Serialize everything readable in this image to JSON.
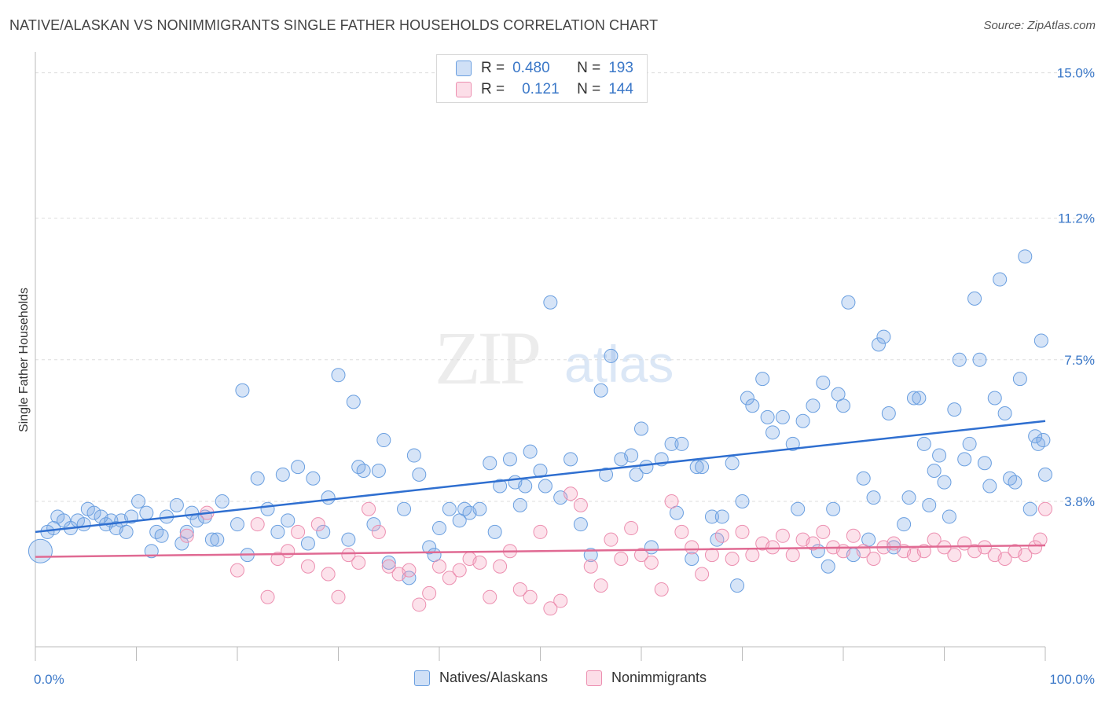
{
  "title": "NATIVE/ALASKAN VS NONIMMIGRANTS SINGLE FATHER HOUSEHOLDS CORRELATION CHART",
  "source": "Source: ZipAtlas.com",
  "watermark": {
    "zip": "ZIP",
    "atlas": "atlas"
  },
  "legend": {
    "r_label": "R =",
    "n_label": "N =",
    "rows": [
      {
        "r": "0.480",
        "n": "193"
      },
      {
        "r": "0.121",
        "n": "144"
      }
    ]
  },
  "chart_data": {
    "type": "scatter",
    "title": "NATIVE/ALASKAN VS NONIMMIGRANTS SINGLE FATHER HOUSEHOLDS CORRELATION CHART",
    "xlabel": "",
    "ylabel": "Single Father Households",
    "xlim": [
      0,
      100
    ],
    "ylim": [
      0,
      15
    ],
    "x_ticks": [
      "0.0%",
      "100.0%"
    ],
    "y_ticks": [
      {
        "value": 3.8,
        "label": "3.8%"
      },
      {
        "value": 7.5,
        "label": "7.5%"
      },
      {
        "value": 11.2,
        "label": "11.2%"
      },
      {
        "value": 15.0,
        "label": "15.0%"
      }
    ],
    "grid": true,
    "legend_position": "bottom-center",
    "colors": {
      "natives": "#6a9fe0",
      "natives_fill": "rgba(120,165,230,0.30)",
      "natives_line": "#2f6fd0",
      "nonimm": "#ec8fb0",
      "nonimm_fill": "rgba(245,160,190,0.30)",
      "nonimm_line": "#e06a93"
    },
    "series": [
      {
        "name": "Natives/Alaskans",
        "trend": [
          [
            0,
            3.0
          ],
          [
            100,
            5.9
          ]
        ],
        "points": [
          [
            0.5,
            2.5
          ],
          [
            1.2,
            3.0
          ],
          [
            1.8,
            3.1
          ],
          [
            2.2,
            3.4
          ],
          [
            2.8,
            3.3
          ],
          [
            3.5,
            3.1
          ],
          [
            4.2,
            3.3
          ],
          [
            4.8,
            3.2
          ],
          [
            5.2,
            3.6
          ],
          [
            5.8,
            3.5
          ],
          [
            6.5,
            3.4
          ],
          [
            7.0,
            3.2
          ],
          [
            7.5,
            3.3
          ],
          [
            8.0,
            3.1
          ],
          [
            8.5,
            3.3
          ],
          [
            9.0,
            3.0
          ],
          [
            9.5,
            3.4
          ],
          [
            10.2,
            3.8
          ],
          [
            11.0,
            3.5
          ],
          [
            11.5,
            2.5
          ],
          [
            12.0,
            3.0
          ],
          [
            12.5,
            2.9
          ],
          [
            13.0,
            3.4
          ],
          [
            14.0,
            3.7
          ],
          [
            14.5,
            2.7
          ],
          [
            15.0,
            3.0
          ],
          [
            15.5,
            3.5
          ],
          [
            16.0,
            3.3
          ],
          [
            16.8,
            3.4
          ],
          [
            17.5,
            2.8
          ],
          [
            18.0,
            2.8
          ],
          [
            18.5,
            3.8
          ],
          [
            20.0,
            3.2
          ],
          [
            20.5,
            6.7
          ],
          [
            21.0,
            2.4
          ],
          [
            22.0,
            4.4
          ],
          [
            23.0,
            3.6
          ],
          [
            24.0,
            3.0
          ],
          [
            24.5,
            4.5
          ],
          [
            25.0,
            3.3
          ],
          [
            26.0,
            4.7
          ],
          [
            27.0,
            2.7
          ],
          [
            27.5,
            4.4
          ],
          [
            28.5,
            3.0
          ],
          [
            29.0,
            3.9
          ],
          [
            30.0,
            7.1
          ],
          [
            31.0,
            2.8
          ],
          [
            31.5,
            6.4
          ],
          [
            32.0,
            4.7
          ],
          [
            32.5,
            4.6
          ],
          [
            33.5,
            3.2
          ],
          [
            34.0,
            4.6
          ],
          [
            34.5,
            5.4
          ],
          [
            35.0,
            2.2
          ],
          [
            36.5,
            3.6
          ],
          [
            37.0,
            1.8
          ],
          [
            37.5,
            5.0
          ],
          [
            38.0,
            4.5
          ],
          [
            39.0,
            2.6
          ],
          [
            39.5,
            2.4
          ],
          [
            40.0,
            3.1
          ],
          [
            41.0,
            3.6
          ],
          [
            42.0,
            3.3
          ],
          [
            42.5,
            3.6
          ],
          [
            43.0,
            3.5
          ],
          [
            44.0,
            3.6
          ],
          [
            45.0,
            4.8
          ],
          [
            45.5,
            3.0
          ],
          [
            46.0,
            4.2
          ],
          [
            47.0,
            4.9
          ],
          [
            47.5,
            4.3
          ],
          [
            48.0,
            3.7
          ],
          [
            48.5,
            4.2
          ],
          [
            49.0,
            5.1
          ],
          [
            50.0,
            4.6
          ],
          [
            50.5,
            4.2
          ],
          [
            51.0,
            9.0
          ],
          [
            52.0,
            3.9
          ],
          [
            53.0,
            4.9
          ],
          [
            54.0,
            3.2
          ],
          [
            55.0,
            2.4
          ],
          [
            56.0,
            6.7
          ],
          [
            56.5,
            4.5
          ],
          [
            57.0,
            7.6
          ],
          [
            58.0,
            4.9
          ],
          [
            59.0,
            5.0
          ],
          [
            59.5,
            4.5
          ],
          [
            60.0,
            5.7
          ],
          [
            60.5,
            4.7
          ],
          [
            61.0,
            2.6
          ],
          [
            62.0,
            4.9
          ],
          [
            63.0,
            5.3
          ],
          [
            63.5,
            3.5
          ],
          [
            64.0,
            5.3
          ],
          [
            65.0,
            2.3
          ],
          [
            65.5,
            4.7
          ],
          [
            66.0,
            4.7
          ],
          [
            67.0,
            3.4
          ],
          [
            67.5,
            2.8
          ],
          [
            68.0,
            3.4
          ],
          [
            69.0,
            4.8
          ],
          [
            69.5,
            1.6
          ],
          [
            70.0,
            3.8
          ],
          [
            70.5,
            6.5
          ],
          [
            71.0,
            6.3
          ],
          [
            72.0,
            7.0
          ],
          [
            72.5,
            6.0
          ],
          [
            73.0,
            5.6
          ],
          [
            74.0,
            6.0
          ],
          [
            75.0,
            5.3
          ],
          [
            75.5,
            3.6
          ],
          [
            76.0,
            5.9
          ],
          [
            77.0,
            6.3
          ],
          [
            77.5,
            2.5
          ],
          [
            78.0,
            6.9
          ],
          [
            78.5,
            2.1
          ],
          [
            79.0,
            3.6
          ],
          [
            79.5,
            6.6
          ],
          [
            80.0,
            6.3
          ],
          [
            80.5,
            9.0
          ],
          [
            81.0,
            2.4
          ],
          [
            82.0,
            4.4
          ],
          [
            82.5,
            2.8
          ],
          [
            83.0,
            3.9
          ],
          [
            83.5,
            7.9
          ],
          [
            84.0,
            8.1
          ],
          [
            84.5,
            6.1
          ],
          [
            85.0,
            2.6
          ],
          [
            86.0,
            3.2
          ],
          [
            86.5,
            3.9
          ],
          [
            87.0,
            6.5
          ],
          [
            87.5,
            6.5
          ],
          [
            88.0,
            5.3
          ],
          [
            88.5,
            3.7
          ],
          [
            89.0,
            4.6
          ],
          [
            89.5,
            5.0
          ],
          [
            90.0,
            4.3
          ],
          [
            90.5,
            3.4
          ],
          [
            91.0,
            6.2
          ],
          [
            91.5,
            7.5
          ],
          [
            92.0,
            4.9
          ],
          [
            92.5,
            5.3
          ],
          [
            93.0,
            9.1
          ],
          [
            93.5,
            7.5
          ],
          [
            94.0,
            4.8
          ],
          [
            94.5,
            4.2
          ],
          [
            95.0,
            6.5
          ],
          [
            95.5,
            9.6
          ],
          [
            96.0,
            6.1
          ],
          [
            96.5,
            4.4
          ],
          [
            97.0,
            4.3
          ],
          [
            97.5,
            7.0
          ],
          [
            98.0,
            10.2
          ],
          [
            98.5,
            3.6
          ],
          [
            99.0,
            5.5
          ],
          [
            99.3,
            5.3
          ],
          [
            99.6,
            8.0
          ],
          [
            99.8,
            5.4
          ],
          [
            100.0,
            4.5
          ]
        ]
      },
      {
        "name": "Nonimmigrants",
        "trend": [
          [
            0,
            2.35
          ],
          [
            100,
            2.65
          ]
        ],
        "points": [
          [
            15.0,
            2.9
          ],
          [
            17.0,
            3.5
          ],
          [
            20.0,
            2.0
          ],
          [
            22.0,
            3.2
          ],
          [
            23.0,
            1.3
          ],
          [
            24.0,
            2.3
          ],
          [
            25.0,
            2.5
          ],
          [
            26.0,
            3.0
          ],
          [
            27.0,
            2.1
          ],
          [
            28.0,
            3.2
          ],
          [
            29.0,
            1.9
          ],
          [
            30.0,
            1.3
          ],
          [
            31.0,
            2.4
          ],
          [
            32.0,
            2.2
          ],
          [
            33.0,
            3.6
          ],
          [
            34.0,
            3.0
          ],
          [
            35.0,
            2.1
          ],
          [
            36.0,
            1.9
          ],
          [
            37.0,
            2.0
          ],
          [
            38.0,
            1.1
          ],
          [
            39.0,
            1.4
          ],
          [
            40.0,
            2.1
          ],
          [
            41.0,
            1.8
          ],
          [
            42.0,
            2.0
          ],
          [
            43.0,
            2.3
          ],
          [
            44.0,
            2.2
          ],
          [
            45.0,
            1.3
          ],
          [
            46.0,
            2.1
          ],
          [
            47.0,
            2.5
          ],
          [
            48.0,
            1.5
          ],
          [
            49.0,
            1.3
          ],
          [
            50.0,
            3.0
          ],
          [
            51.0,
            1.0
          ],
          [
            52.0,
            1.2
          ],
          [
            53.0,
            4.0
          ],
          [
            54.0,
            3.7
          ],
          [
            55.0,
            2.1
          ],
          [
            56.0,
            1.6
          ],
          [
            57.0,
            2.8
          ],
          [
            58.0,
            2.3
          ],
          [
            59.0,
            3.1
          ],
          [
            60.0,
            2.4
          ],
          [
            61.0,
            2.2
          ],
          [
            62.0,
            1.5
          ],
          [
            63.0,
            3.8
          ],
          [
            64.0,
            3.0
          ],
          [
            65.0,
            2.6
          ],
          [
            66.0,
            1.9
          ],
          [
            67.0,
            2.4
          ],
          [
            68.0,
            2.9
          ],
          [
            69.0,
            2.3
          ],
          [
            70.0,
            3.0
          ],
          [
            71.0,
            2.4
          ],
          [
            72.0,
            2.7
          ],
          [
            73.0,
            2.6
          ],
          [
            74.0,
            2.9
          ],
          [
            75.0,
            2.4
          ],
          [
            76.0,
            2.8
          ],
          [
            77.0,
            2.7
          ],
          [
            78.0,
            3.0
          ],
          [
            79.0,
            2.6
          ],
          [
            80.0,
            2.5
          ],
          [
            81.0,
            2.9
          ],
          [
            82.0,
            2.5
          ],
          [
            83.0,
            2.3
          ],
          [
            84.0,
            2.6
          ],
          [
            85.0,
            2.7
          ],
          [
            86.0,
            2.5
          ],
          [
            87.0,
            2.4
          ],
          [
            88.0,
            2.5
          ],
          [
            89.0,
            2.8
          ],
          [
            90.0,
            2.6
          ],
          [
            91.0,
            2.4
          ],
          [
            92.0,
            2.7
          ],
          [
            93.0,
            2.5
          ],
          [
            94.0,
            2.6
          ],
          [
            95.0,
            2.4
          ],
          [
            96.0,
            2.3
          ],
          [
            97.0,
            2.5
          ],
          [
            98.0,
            2.4
          ],
          [
            99.0,
            2.6
          ],
          [
            99.5,
            2.8
          ],
          [
            100.0,
            3.6
          ]
        ]
      }
    ]
  }
}
